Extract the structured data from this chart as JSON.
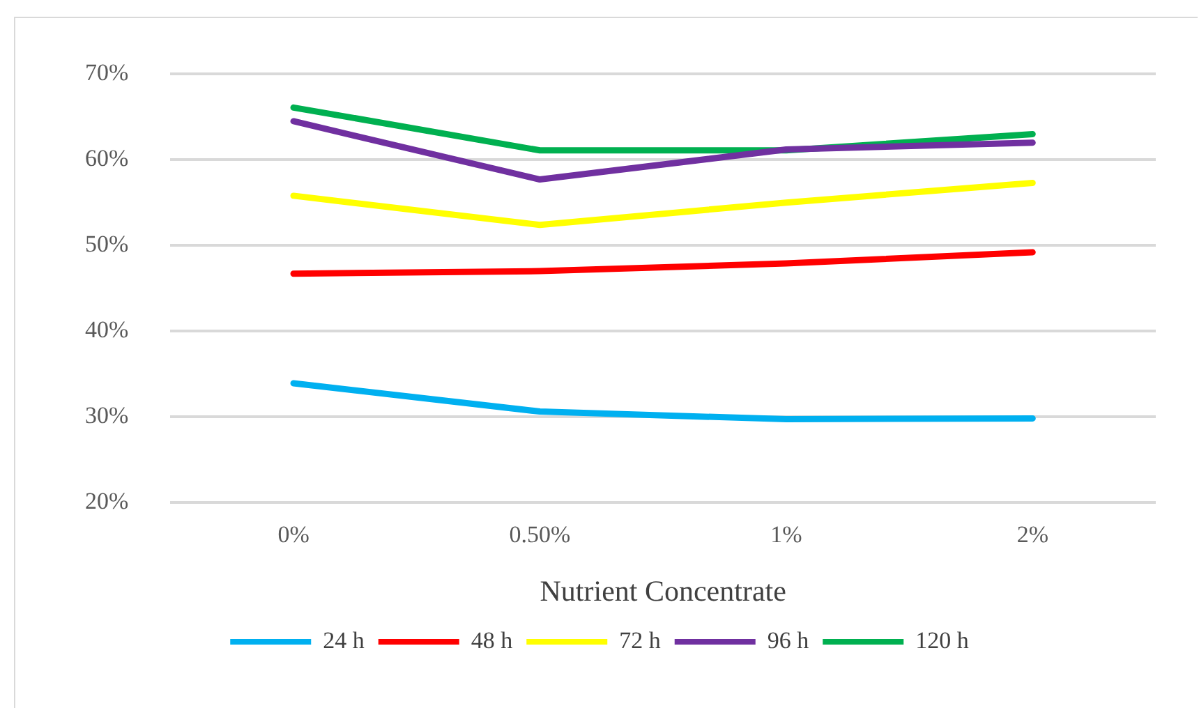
{
  "chart_data": {
    "type": "line",
    "xlabel": "Nutrient Concentrate",
    "categories": [
      "0%",
      "0.50%",
      "1%",
      "2%"
    ],
    "series": [
      {
        "name": "24 h",
        "color": "#00b0f0",
        "values": [
          33.9,
          30.6,
          29.7,
          29.8
        ]
      },
      {
        "name": "48 h",
        "color": "#ff0000",
        "values": [
          46.7,
          47.0,
          47.9,
          49.2
        ]
      },
      {
        "name": "72 h",
        "color": "#ffff00",
        "values": [
          55.8,
          52.4,
          55.0,
          57.3
        ]
      },
      {
        "name": "96 h",
        "color": "#7030a0",
        "values": [
          64.5,
          57.7,
          61.2,
          62.0
        ]
      },
      {
        "name": "120 h",
        "color": "#00b050",
        "values": [
          66.1,
          61.1,
          61.1,
          63.0
        ]
      }
    ],
    "ylim": [
      20,
      70
    ],
    "yticks": [
      {
        "value": 20,
        "label": "20%"
      },
      {
        "value": 30,
        "label": "30%"
      },
      {
        "value": 40,
        "label": "40%"
      },
      {
        "value": 50,
        "label": "50%"
      },
      {
        "value": 60,
        "label": "60%"
      },
      {
        "value": 70,
        "label": "70%"
      }
    ],
    "grid": "y",
    "legend": "bottom",
    "marker": "none",
    "line_style": "solid"
  }
}
